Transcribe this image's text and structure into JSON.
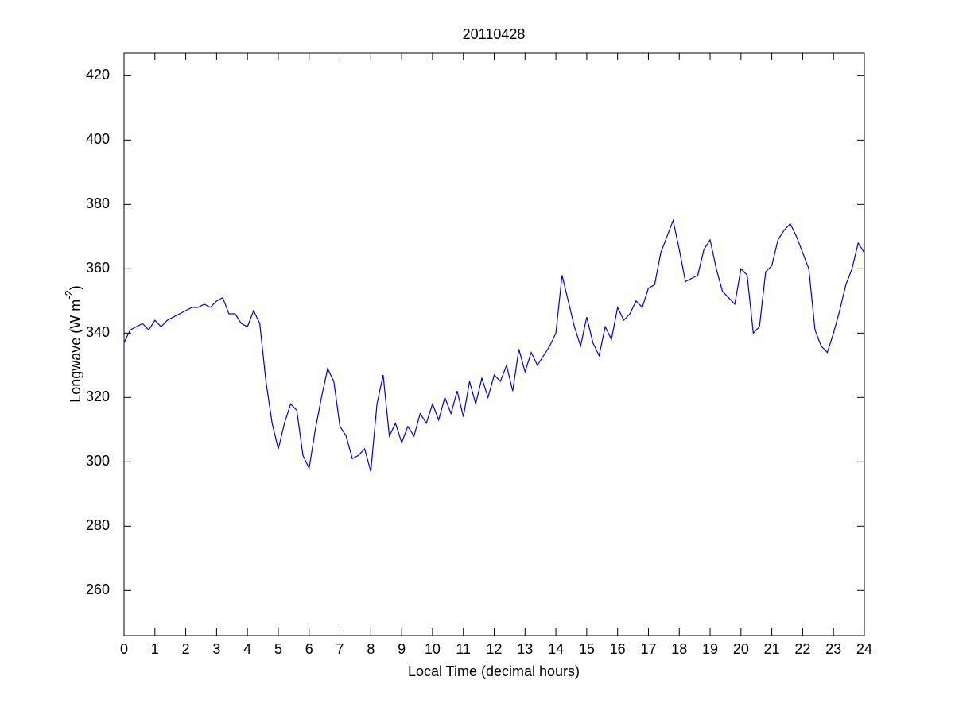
{
  "chart_data": {
    "type": "line",
    "title": "20110428",
    "xlabel": "Local Time (decimal hours)",
    "ylabel": {
      "text": "Longwave (W m",
      "superscript": "-2",
      "suffix": ")"
    },
    "xlim": [
      0,
      24
    ],
    "xticks": [
      0,
      1,
      2,
      3,
      4,
      5,
      6,
      7,
      8,
      9,
      10,
      11,
      12,
      13,
      14,
      15,
      16,
      17,
      18,
      19,
      20,
      21,
      22,
      23,
      24
    ],
    "ylim": [
      246,
      427
    ],
    "yticks": [
      260,
      280,
      300,
      320,
      340,
      360,
      380,
      400,
      420
    ],
    "grid": false,
    "color": "#0000cc",
    "x": [
      0,
      0.2,
      0.4,
      0.6,
      0.8,
      1,
      1.2,
      1.4,
      1.6,
      1.8,
      2,
      2.2,
      2.4,
      2.6,
      2.8,
      3,
      3.2,
      3.4,
      3.6,
      3.8,
      4,
      4.2,
      4.4,
      4.6,
      4.8,
      5,
      5.2,
      5.4,
      5.6,
      5.8,
      6,
      6.2,
      6.4,
      6.6,
      6.8,
      7,
      7.2,
      7.4,
      7.6,
      7.8,
      8,
      8.2,
      8.4,
      8.6,
      8.8,
      9,
      9.2,
      9.4,
      9.6,
      9.8,
      10,
      10.2,
      10.4,
      10.6,
      10.8,
      11,
      11.2,
      11.4,
      11.6,
      11.8,
      12,
      12.2,
      12.4,
      12.6,
      12.8,
      13,
      13.2,
      13.4,
      13.6,
      13.8,
      14,
      14.2,
      14.4,
      14.6,
      14.8,
      15,
      15.2,
      15.4,
      15.6,
      15.8,
      16,
      16.2,
      16.4,
      16.6,
      16.8,
      17,
      17.2,
      17.4,
      17.6,
      17.8,
      18,
      18.2,
      18.4,
      18.6,
      18.8,
      19,
      19.2,
      19.4,
      19.6,
      19.8,
      20,
      20.2,
      20.4,
      20.6,
      20.8,
      21,
      21.2,
      21.4,
      21.6,
      21.8,
      22,
      22.2,
      22.4,
      22.6,
      22.8,
      23,
      23.2,
      23.4,
      23.6,
      23.8,
      24
    ],
    "values": [
      337,
      341,
      342,
      343,
      341,
      344,
      342,
      344,
      345,
      346,
      347,
      348,
      348,
      349,
      348,
      350,
      351,
      346,
      346,
      343,
      342,
      347,
      343,
      325,
      312,
      304,
      312,
      318,
      316,
      302,
      298,
      310,
      320,
      329,
      325,
      311,
      308,
      301,
      302,
      304,
      297,
      318,
      327,
      308,
      312,
      306,
      311,
      308,
      315,
      312,
      318,
      313,
      320,
      315,
      322,
      314,
      325,
      318,
      326,
      320,
      327,
      325,
      330,
      322,
      335,
      328,
      334,
      330,
      333,
      336,
      340,
      358,
      350,
      342,
      336,
      345,
      337,
      333,
      342,
      338,
      348,
      344,
      346,
      350,
      348,
      354,
      355,
      365,
      370,
      375,
      366,
      356,
      357,
      358,
      366,
      369,
      360,
      353,
      351,
      349,
      360,
      358,
      340,
      342,
      359,
      361,
      369,
      372,
      374,
      370,
      365,
      360,
      341,
      336,
      334,
      340,
      347,
      355,
      360,
      368,
      365
    ]
  }
}
